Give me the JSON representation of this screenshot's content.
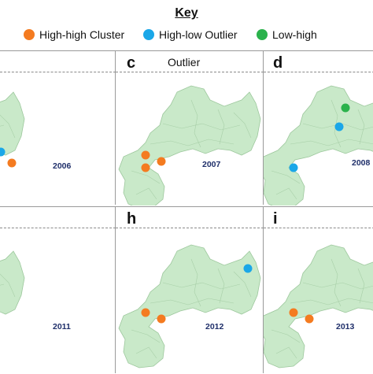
{
  "key": {
    "title": "Key",
    "items": [
      {
        "label": "High-high Cluster",
        "color": "#f47b20",
        "icon": "orange-circle-icon"
      },
      {
        "label": "High-low Outlier",
        "color": "#1aa7e8",
        "icon": "blue-circle-icon"
      },
      {
        "label": "Low-high",
        "color": "#2bb24c",
        "icon": "green-circle-icon"
      }
    ]
  },
  "map_color": "#c9e9c9",
  "panels": [
    {
      "id": "b",
      "letter": "",
      "title": "",
      "year": "2006",
      "points": [
        {
          "type": "High-low Outlier"
        },
        {
          "type": "High-high Cluster"
        }
      ]
    },
    {
      "id": "c",
      "letter": "c",
      "title": "Outlier",
      "year": "2007",
      "points": [
        {
          "type": "High-high Cluster"
        },
        {
          "type": "High-high Cluster"
        },
        {
          "type": "High-high Cluster"
        }
      ]
    },
    {
      "id": "d",
      "letter": "d",
      "title": "",
      "year": "2008",
      "points": [
        {
          "type": "Low-high"
        },
        {
          "type": "High-low Outlier"
        },
        {
          "type": "High-low Outlier"
        }
      ]
    },
    {
      "id": "g",
      "letter": "",
      "title": "",
      "year": "2011",
      "points": []
    },
    {
      "id": "h",
      "letter": "h",
      "title": "",
      "year": "2012",
      "points": [
        {
          "type": "High-low Outlier"
        },
        {
          "type": "High-high Cluster"
        },
        {
          "type": "High-high Cluster"
        }
      ]
    },
    {
      "id": "i",
      "letter": "i",
      "title": "",
      "year": "2013",
      "points": [
        {
          "type": "High-high Cluster"
        },
        {
          "type": "High-high Cluster"
        }
      ]
    }
  ]
}
